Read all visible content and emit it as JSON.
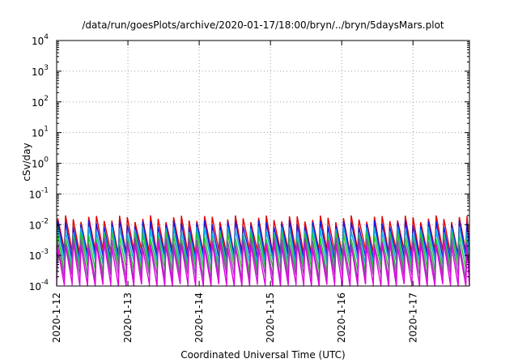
{
  "chart_data": {
    "type": "line",
    "title": "/data/run/goesPlots/archive/2020-01-17/18:00/bryn/../bryn/5daysMars.plot",
    "xlabel": "Coordinated Universal Time (UTC)",
    "ylabel": "cSv/day",
    "yscale": "log",
    "ylim": [
      0.0001,
      10000
    ],
    "xlim": [
      "2020-01-12",
      "2020-01-17 19:00"
    ],
    "y_ticks": [
      {
        "base": "10",
        "exp": "-4",
        "value": 0.0001
      },
      {
        "base": "10",
        "exp": "-3",
        "value": 0.001
      },
      {
        "base": "10",
        "exp": "-2",
        "value": 0.01
      },
      {
        "base": "10",
        "exp": "-1",
        "value": 0.1
      },
      {
        "base": "10",
        "exp": "0",
        "value": 1
      },
      {
        "base": "10",
        "exp": "1",
        "value": 10
      },
      {
        "base": "10",
        "exp": "2",
        "value": 100
      },
      {
        "base": "10",
        "exp": "3",
        "value": 1000
      },
      {
        "base": "10",
        "exp": "4",
        "value": 10000
      }
    ],
    "x_ticks": [
      "2020-1-12",
      "2020-1-13",
      "2020-1-14",
      "2020-1-15",
      "2020-1-16",
      "2020-1-17"
    ],
    "grid": true,
    "legend": "none",
    "sawtooth_period_hours": 2.6,
    "series": [
      {
        "color": "#e00000",
        "peak": 0.016,
        "trough": 0.0013
      },
      {
        "color": "#1a1ae0",
        "peak": 0.011,
        "trough": 0.0009
      },
      {
        "color": "#00b0e0",
        "peak": 0.007,
        "trough": 0.0006
      },
      {
        "color": "#22c722",
        "peak": 0.0045,
        "trough": 0.00035
      },
      {
        "color": "#8050a0",
        "peak": 0.003,
        "trough": 0.0002
      },
      {
        "color": "#e000e0",
        "peak": 0.0022,
        "trough": 0.0001
      }
    ]
  }
}
